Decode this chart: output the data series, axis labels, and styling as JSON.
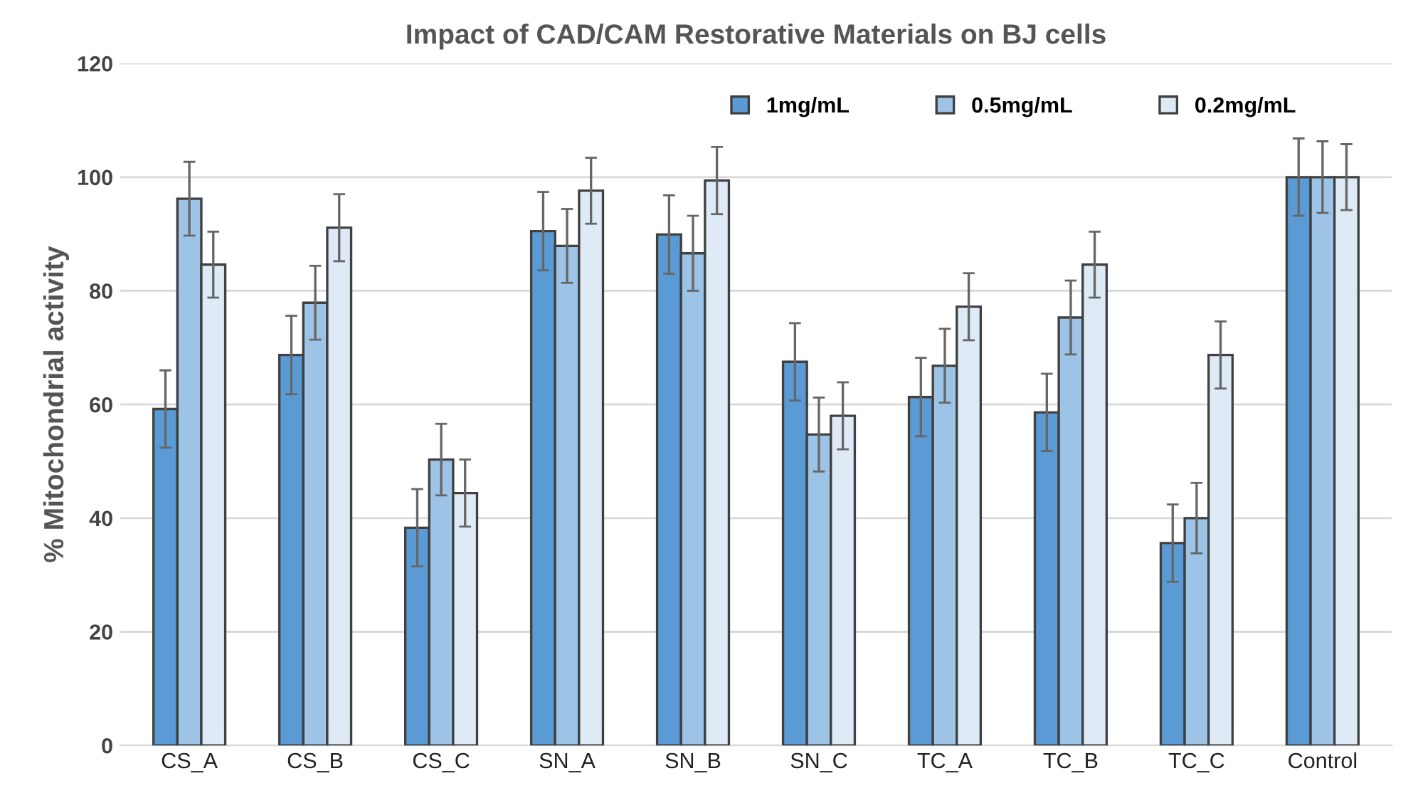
{
  "chart_data": {
    "type": "bar",
    "title": "Impact of CAD/CAM Restorative Materials on BJ cells",
    "ylabel": "% Mitochondrial activity",
    "categories": [
      "CS_A",
      "CS_B",
      "CS_C",
      "SN_A",
      "SN_B",
      "SN_C",
      "TC_A",
      "TC_B",
      "TC_C",
      "Control"
    ],
    "series": [
      {
        "name": "1mg/mL",
        "color": "#5b9bd5",
        "values": [
          59.2,
          68.7,
          38.3,
          90.5,
          89.9,
          67.5,
          61.3,
          58.6,
          35.6,
          100
        ],
        "errors": [
          6.8,
          6.9,
          6.8,
          6.9,
          6.9,
          6.8,
          6.9,
          6.8,
          6.8,
          6.8
        ]
      },
      {
        "name": "0.5mg/mL",
        "color": "#9dc3e6",
        "values": [
          96.2,
          77.9,
          50.3,
          87.9,
          86.6,
          54.7,
          66.8,
          75.3,
          40.0,
          100
        ],
        "errors": [
          6.5,
          6.5,
          6.3,
          6.5,
          6.6,
          6.5,
          6.5,
          6.5,
          6.2,
          6.3
        ]
      },
      {
        "name": "0.2mg/mL",
        "color": "#deebf7",
        "values": [
          84.6,
          91.1,
          44.4,
          97.6,
          99.4,
          58.0,
          77.2,
          84.6,
          68.7,
          100
        ],
        "errors": [
          5.8,
          5.9,
          5.9,
          5.8,
          5.9,
          5.9,
          5.9,
          5.8,
          5.9,
          5.8
        ]
      }
    ],
    "ylim": [
      0,
      120
    ],
    "yticks": [
      0,
      20,
      40,
      60,
      80,
      100,
      120
    ],
    "grid": "y",
    "legend": "top right"
  }
}
